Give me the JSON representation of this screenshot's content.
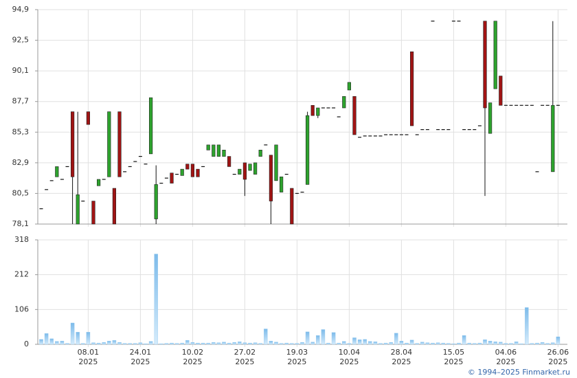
{
  "chart_data": [
    {
      "type": "candlestick",
      "ylim": [
        78.1,
        94.9
      ],
      "yticks": [
        {
          "value": 94.9,
          "label": "94,9"
        },
        {
          "value": 92.5,
          "label": "92,5"
        },
        {
          "value": 90.1,
          "label": "90,1"
        },
        {
          "value": 87.7,
          "label": "87,7"
        },
        {
          "value": 85.3,
          "label": "85,3"
        },
        {
          "value": 82.9,
          "label": "82,9"
        },
        {
          "value": 80.5,
          "label": "80,5"
        },
        {
          "value": 78.1,
          "label": "78,1"
        }
      ],
      "up_color": "#2ea32e",
      "down_color": "#a01414",
      "grid": true,
      "open": [
        79.3,
        80.8,
        81.5,
        81.8,
        81.6,
        82.6,
        86.9,
        78.1,
        79.9,
        86.9,
        79.9,
        81.1,
        81.6,
        81.8,
        80.9,
        86.9,
        82.2,
        82.6,
        83.0,
        83.4,
        82.8,
        83.6,
        78.5,
        81.3,
        81.7,
        82.1,
        82.0,
        81.9,
        82.8,
        82.8,
        82.4,
        82.6,
        83.9,
        83.4,
        83.4,
        83.4,
        83.4,
        82.0,
        82.0,
        82.9,
        82.3,
        82.0,
        83.4,
        84.3,
        83.5,
        81.5,
        80.6,
        82.0,
        80.9,
        80.5,
        80.6,
        81.2,
        87.4,
        86.6,
        87.2,
        87.2,
        87.2,
        86.5,
        87.2,
        88.6,
        88.1,
        84.9,
        85.0,
        85.0,
        85.0,
        85.0,
        85.1,
        85.1,
        85.1,
        85.1,
        85.1,
        91.6,
        85.1,
        85.5,
        85.5,
        94.0,
        85.5,
        85.5,
        85.5,
        94.0,
        94.0,
        85.5,
        85.5,
        85.5,
        85.8,
        94.0,
        85.2,
        88.7,
        89.7,
        87.4,
        87.4,
        87.4,
        87.4,
        87.4,
        87.4,
        82.2,
        87.4,
        87.4,
        82.2,
        87.4
      ],
      "high": [
        79.3,
        80.8,
        81.5,
        82.6,
        81.6,
        82.6,
        86.9,
        86.9,
        79.9,
        86.9,
        79.9,
        81.6,
        81.6,
        86.9,
        80.9,
        86.9,
        82.2,
        82.6,
        83.0,
        83.4,
        82.8,
        88.0,
        82.7,
        81.3,
        81.7,
        82.1,
        82.0,
        82.4,
        82.8,
        82.8,
        82.4,
        82.6,
        84.3,
        84.3,
        84.3,
        83.9,
        83.4,
        82.0,
        82.4,
        82.9,
        82.8,
        82.9,
        83.9,
        84.3,
        83.5,
        84.3,
        81.8,
        82.0,
        80.9,
        80.5,
        80.6,
        86.9,
        87.4,
        87.2,
        87.2,
        87.2,
        87.2,
        86.5,
        88.1,
        89.2,
        88.1,
        84.9,
        85.0,
        85.0,
        85.0,
        85.0,
        85.1,
        85.1,
        85.1,
        85.1,
        85.1,
        91.6,
        85.1,
        85.5,
        85.5,
        94.0,
        85.5,
        85.5,
        85.5,
        94.0,
        94.0,
        85.5,
        85.5,
        85.5,
        85.8,
        94.0,
        87.6,
        94.0,
        89.7,
        87.4,
        87.4,
        87.4,
        87.4,
        87.4,
        87.4,
        82.2,
        87.4,
        87.4,
        94.0,
        87.4
      ],
      "low": [
        79.3,
        80.8,
        81.5,
        81.8,
        81.6,
        82.6,
        78.1,
        78.1,
        79.9,
        85.9,
        78.1,
        81.1,
        81.6,
        81.8,
        78.1,
        81.8,
        82.2,
        82.6,
        83.0,
        83.4,
        82.8,
        83.6,
        78.1,
        81.3,
        81.7,
        81.3,
        82.0,
        81.9,
        82.4,
        81.8,
        81.8,
        82.6,
        83.9,
        83.4,
        83.4,
        83.4,
        82.6,
        82.0,
        82.0,
        80.3,
        82.3,
        82.0,
        83.4,
        84.3,
        78.1,
        81.5,
        80.6,
        82.0,
        78.1,
        80.5,
        80.6,
        81.2,
        86.6,
        86.4,
        87.2,
        87.2,
        87.2,
        86.5,
        87.2,
        88.6,
        85.1,
        84.9,
        85.0,
        85.0,
        85.0,
        85.0,
        85.1,
        85.1,
        85.1,
        85.1,
        85.1,
        85.8,
        85.1,
        85.5,
        85.5,
        94.0,
        85.5,
        85.5,
        85.5,
        94.0,
        94.0,
        85.5,
        85.5,
        85.5,
        85.8,
        80.3,
        85.2,
        88.7,
        87.4,
        87.4,
        87.4,
        87.4,
        87.4,
        87.4,
        87.4,
        82.2,
        87.4,
        87.4,
        82.2,
        87.4
      ],
      "close": [
        79.3,
        80.8,
        81.5,
        82.6,
        81.6,
        82.6,
        81.8,
        80.4,
        79.9,
        85.9,
        78.1,
        81.6,
        81.6,
        86.9,
        78.1,
        81.8,
        82.2,
        82.6,
        83.0,
        83.4,
        82.8,
        88.0,
        81.2,
        81.3,
        81.7,
        81.3,
        82.0,
        82.4,
        82.4,
        81.8,
        81.8,
        82.6,
        84.3,
        84.3,
        84.3,
        83.9,
        82.6,
        82.0,
        82.4,
        81.6,
        82.8,
        82.9,
        83.9,
        84.3,
        79.9,
        84.3,
        81.8,
        82.0,
        78.1,
        80.5,
        80.6,
        86.6,
        86.6,
        87.2,
        87.2,
        87.2,
        87.2,
        86.5,
        88.1,
        89.2,
        85.1,
        84.9,
        85.0,
        85.0,
        85.0,
        85.0,
        85.1,
        85.1,
        85.1,
        85.1,
        85.1,
        85.8,
        85.1,
        85.5,
        85.5,
        94.0,
        85.5,
        85.5,
        85.5,
        94.0,
        94.0,
        85.5,
        85.5,
        85.5,
        85.8,
        87.2,
        87.6,
        94.0,
        87.4,
        87.4,
        87.4,
        87.4,
        87.4,
        87.4,
        87.4,
        82.2,
        87.4,
        87.4,
        87.4,
        87.4
      ]
    },
    {
      "type": "bar",
      "ylim": [
        0,
        318
      ],
      "yticks": [
        318,
        212,
        106,
        0
      ],
      "color": "#8cc6ee",
      "grid": true,
      "values": [
        15,
        33,
        17,
        9,
        10,
        3,
        65,
        37,
        3,
        37,
        5,
        4,
        6,
        10,
        12,
        6,
        3,
        3,
        3,
        5,
        2,
        9,
        275,
        2,
        3,
        4,
        3,
        4,
        12,
        6,
        4,
        4,
        4,
        6,
        5,
        7,
        4,
        6,
        8,
        5,
        4,
        5,
        3,
        47,
        10,
        7,
        3,
        4,
        3,
        3,
        6,
        38,
        7,
        27,
        45,
        4,
        36,
        4,
        9,
        3,
        20,
        14,
        15,
        9,
        8,
        3,
        4,
        6,
        34,
        10,
        4,
        13,
        3,
        7,
        5,
        4,
        5,
        4,
        3,
        2,
        4,
        27,
        4,
        3,
        4,
        14,
        10,
        8,
        7,
        3,
        3,
        8,
        2,
        112,
        3,
        4,
        6,
        3,
        5,
        23
      ],
      "xticks": [
        {
          "value": 9,
          "label": "08.01",
          "year": "2025"
        },
        {
          "value": 19,
          "label": "24.01",
          "year": "2025"
        },
        {
          "value": 29,
          "label": "10.02",
          "year": "2025"
        },
        {
          "value": 39,
          "label": "27.02",
          "year": "2025"
        },
        {
          "value": 49,
          "label": "19.03",
          "year": "2025"
        },
        {
          "value": 59,
          "label": "10.04",
          "year": "2025"
        },
        {
          "value": 69,
          "label": "28.04",
          "year": "2025"
        },
        {
          "value": 79,
          "label": "15.05",
          "year": "2025"
        },
        {
          "value": 89,
          "label": "04.06",
          "year": "2025"
        },
        {
          "value": 99,
          "label": "26.06",
          "year": "2025"
        }
      ]
    }
  ],
  "footer": "© 1994–2025 Finmarket.ru"
}
